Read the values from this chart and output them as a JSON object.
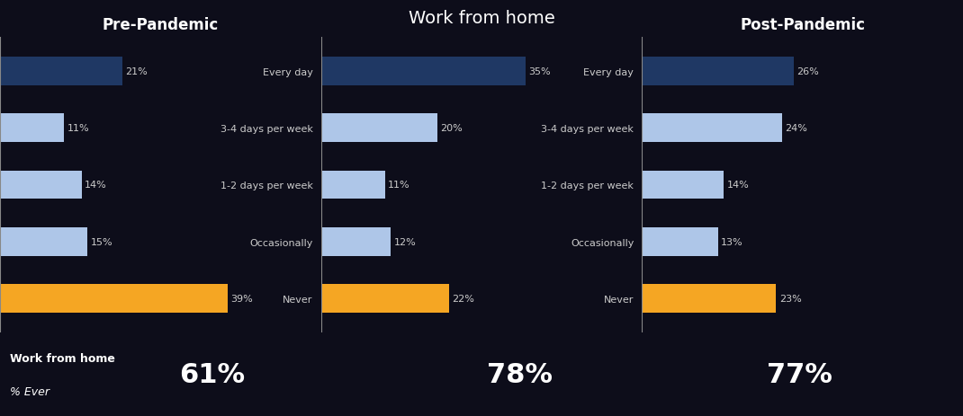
{
  "title": "Work from home",
  "title_bg": "#1F3864",
  "chart_bg": "#1a1a2e",
  "plot_bg": "#0d0d1a",
  "categories": [
    "Every day",
    "3-4 days per week",
    "1-2 days per week",
    "Occasionally",
    "Never"
  ],
  "panels": [
    {
      "subtitle": "Pre-Pandemic",
      "values": [
        21,
        11,
        14,
        15,
        39
      ],
      "pct_ever": "61%"
    },
    {
      "subtitle": "",
      "values": [
        35,
        20,
        11,
        12,
        22
      ],
      "pct_ever": "78%"
    },
    {
      "subtitle": "Post-Pandemic",
      "values": [
        26,
        24,
        14,
        13,
        23
      ],
      "pct_ever": "77%"
    }
  ],
  "bar_colors": [
    "#1F3864",
    "#aec6e8",
    "#aec6e8",
    "#aec6e8",
    "#f5a623"
  ],
  "dark_blue": "#1F3864",
  "light_blue": "#aec6e8",
  "orange": "#f5a623",
  "footer_bg": "#1F3864",
  "footer_text_color": "#ffffff",
  "header_text_color": "#ffffff",
  "label_text_color": "#555555",
  "value_text_color": "#555555",
  "subtitle_color": "#ffffff",
  "figure_bg": "#1a1a2e",
  "panel_bg": "#0d0d1a"
}
